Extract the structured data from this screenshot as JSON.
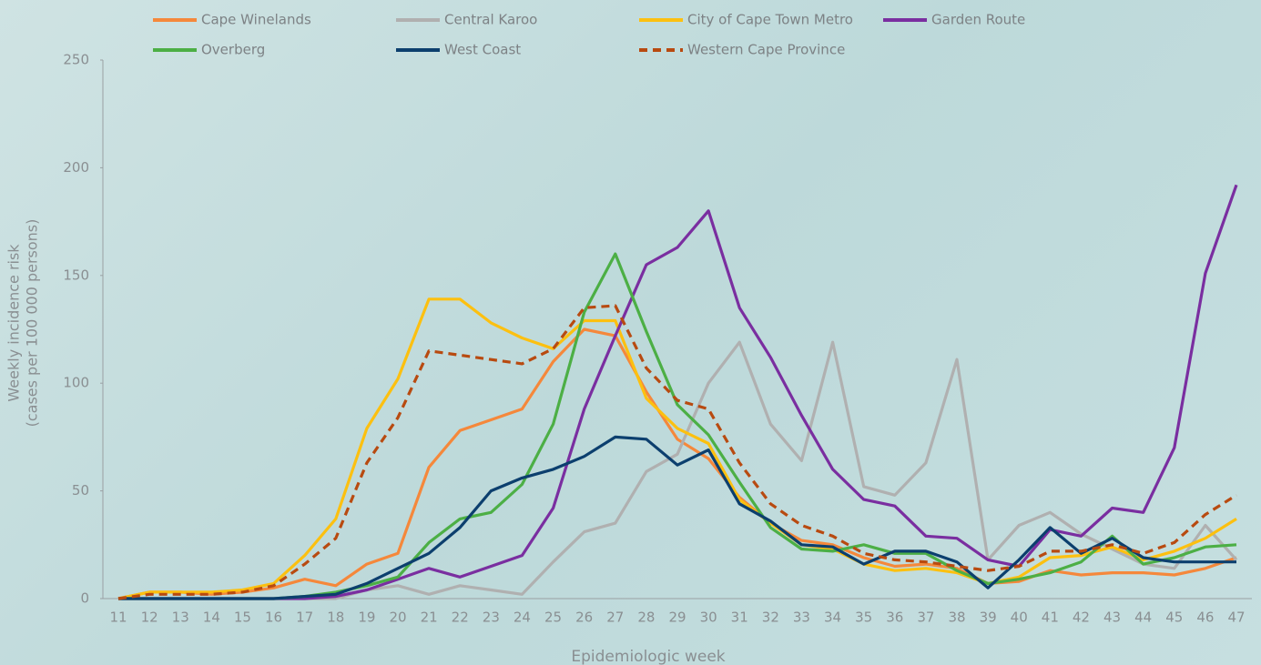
{
  "chart_data": {
    "type": "line",
    "xlabel": "Epidemiologic week",
    "ylabel": [
      "Weekly incidence risk",
      "(cases per 100 000 persons)"
    ],
    "categories": [
      "11",
      "12",
      "13",
      "14",
      "15",
      "16",
      "17",
      "18",
      "19",
      "20",
      "21",
      "22",
      "23",
      "24",
      "25",
      "26",
      "27",
      "28",
      "29",
      "30",
      "31",
      "32",
      "33",
      "34",
      "35",
      "36",
      "37",
      "38",
      "39",
      "40",
      "41",
      "42",
      "43",
      "44",
      "45",
      "46",
      "47"
    ],
    "ylim": [
      0,
      250
    ],
    "yticks": [
      0,
      50,
      100,
      150,
      200,
      250
    ],
    "series": [
      {
        "name": "Cape Winelands",
        "color": "#f5883b",
        "values": [
          0,
          3,
          3,
          2,
          3,
          5,
          9,
          6,
          16,
          21,
          61,
          78,
          83,
          88,
          110,
          125,
          122,
          96,
          74,
          65,
          47,
          35,
          27,
          25,
          19,
          15,
          16,
          14,
          7,
          8,
          13,
          11,
          12,
          12,
          11,
          14,
          19
        ]
      },
      {
        "name": "Central Karoo",
        "color": "#b0b0b0",
        "values": [
          0,
          0,
          0,
          0,
          0,
          0,
          0,
          0,
          4,
          6,
          2,
          6,
          4,
          2,
          17,
          31,
          35,
          59,
          67,
          100,
          119,
          81,
          64,
          119,
          52,
          48,
          63,
          111,
          18,
          34,
          40,
          30,
          23,
          16,
          14,
          34,
          18
        ]
      },
      {
        "name": "City of Cape Town Metro",
        "color": "#fcc010",
        "values": [
          0,
          3,
          3,
          3,
          4,
          7,
          20,
          37,
          79,
          102,
          139,
          139,
          128,
          121,
          116,
          129,
          129,
          93,
          79,
          72,
          46,
          35,
          25,
          23,
          16,
          13,
          14,
          12,
          7,
          10,
          19,
          20,
          24,
          18,
          22,
          28,
          37
        ]
      },
      {
        "name": "Garden Route",
        "color": "#7a2ea0",
        "values": [
          0,
          0,
          0,
          0,
          0,
          0,
          0,
          1,
          4,
          9,
          14,
          10,
          15,
          20,
          42,
          88,
          122,
          155,
          163,
          180,
          135,
          112,
          85,
          60,
          46,
          43,
          29,
          28,
          18,
          15,
          32,
          29,
          42,
          40,
          70,
          151,
          192
        ]
      },
      {
        "name": "Overberg",
        "color": "#4caf45",
        "values": [
          0,
          0,
          0,
          0,
          0,
          0,
          1,
          3,
          6,
          10,
          26,
          37,
          40,
          53,
          81,
          133,
          160,
          124,
          90,
          76,
          54,
          33,
          23,
          22,
          25,
          21,
          21,
          13,
          7,
          9,
          12,
          17,
          29,
          16,
          19,
          24,
          25
        ]
      },
      {
        "name": "West Coast",
        "color": "#0c3f6e",
        "values": [
          0,
          0,
          0,
          0,
          0,
          0,
          1,
          2,
          7,
          14,
          21,
          33,
          50,
          56,
          60,
          66,
          75,
          74,
          62,
          69,
          44,
          36,
          25,
          24,
          16,
          22,
          22,
          17,
          5,
          18,
          33,
          21,
          28,
          19,
          17,
          17,
          17
        ]
      },
      {
        "name": "Western Cape Province",
        "color": "#b84a10",
        "style": "dashed",
        "values": [
          0,
          2,
          2,
          2,
          3,
          6,
          16,
          28,
          63,
          84,
          115,
          113,
          111,
          109,
          116,
          135,
          136,
          107,
          92,
          88,
          63,
          44,
          34,
          29,
          21,
          18,
          17,
          15,
          13,
          15,
          22,
          22,
          25,
          21,
          26,
          39,
          48
        ]
      }
    ]
  }
}
